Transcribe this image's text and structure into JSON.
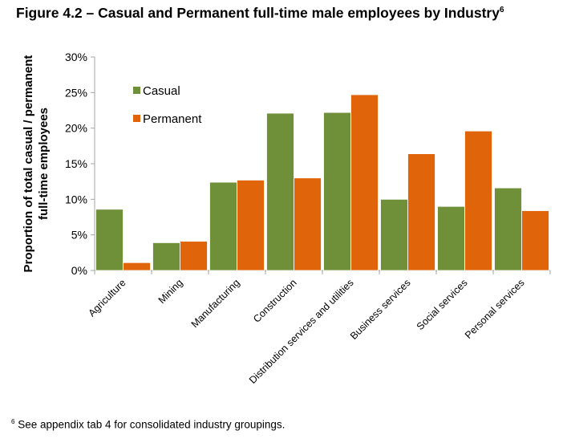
{
  "title": "Figure 4.2 – Casual and Permanent full-time male employees by Industry",
  "title_superscript": "6",
  "footnote": {
    "marker": "6",
    "text": " See appendix tab 4 for consolidated industry groupings."
  },
  "chart_data": {
    "type": "bar",
    "title": "",
    "xlabel": "",
    "ylabel": "Proportion of total casual / permanent full-time employees",
    "ylabel_lines": [
      "Proportion of total casual / permanent",
      "full-time employees"
    ],
    "ylim": [
      0,
      30
    ],
    "yticks": [
      "0%",
      "5%",
      "10%",
      "15%",
      "20%",
      "25%",
      "30%"
    ],
    "grid": false,
    "legend": "top-left",
    "categories": [
      "Agriculture",
      "Mining",
      "Manufacturing",
      "Construction",
      "Distribution services and utilities",
      "Business services",
      "Social services",
      "Personal services"
    ],
    "series": [
      {
        "name": "Casual",
        "color": "#6f9039",
        "values": [
          8.6,
          3.9,
          12.4,
          22.1,
          22.2,
          10.0,
          9.0,
          11.6
        ]
      },
      {
        "name": "Permanent",
        "color": "#e0650a",
        "values": [
          1.1,
          4.1,
          12.7,
          13.0,
          24.7,
          16.4,
          19.6,
          8.4
        ]
      }
    ]
  }
}
